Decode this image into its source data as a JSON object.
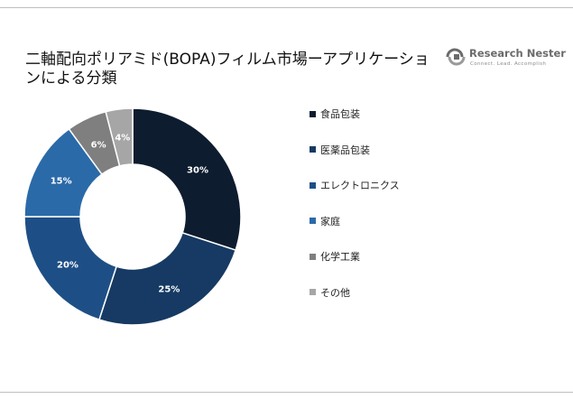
{
  "header": {
    "title": "二軸配向ポリアミド(BOPA)フィルム市場ーアプリケーションによる分類"
  },
  "brand": {
    "name": "Research Nester",
    "tagline": "Connect. Lead. Accomplish"
  },
  "chart_data": {
    "type": "pie",
    "donut": true,
    "title": "二軸配向ポリアミド(BOPA)フィルム市場ーアプリケーションによる分類",
    "categories": [
      "食品包装",
      "医薬品包装",
      "エレクトロニクス",
      "家庭",
      "化学工業",
      "その他"
    ],
    "values": [
      30,
      25,
      20,
      15,
      6,
      4
    ],
    "value_labels": [
      "30%",
      "25%",
      "20%",
      "15%",
      "6%",
      "4%"
    ],
    "colors": [
      "#0e1c2f",
      "#163a63",
      "#1d4f86",
      "#2a6aa8",
      "#7f7f7f",
      "#a6a6a6"
    ],
    "legend_position": "right"
  }
}
